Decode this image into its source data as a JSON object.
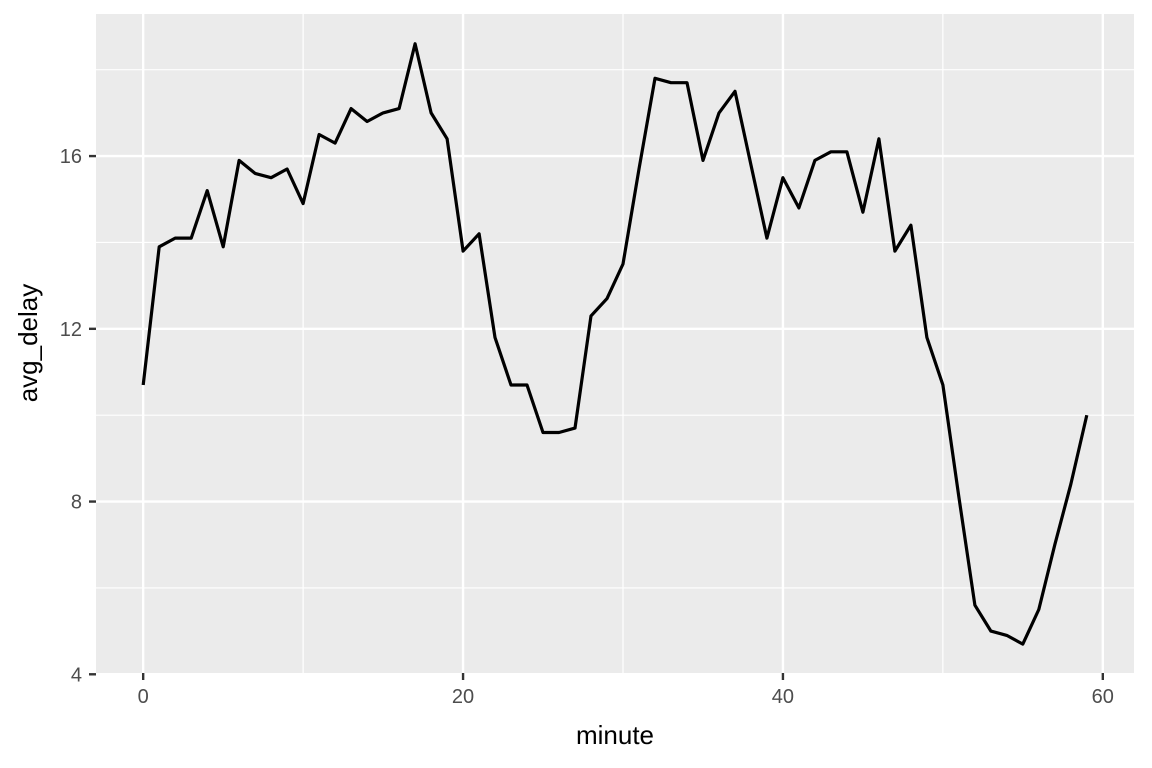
{
  "chart_data": {
    "type": "line",
    "title": "",
    "xlabel": "minute",
    "ylabel": "avg_delay",
    "x": [
      0,
      1,
      2,
      3,
      4,
      5,
      6,
      7,
      8,
      9,
      10,
      11,
      12,
      13,
      14,
      15,
      16,
      17,
      18,
      19,
      20,
      21,
      22,
      23,
      24,
      25,
      26,
      27,
      28,
      29,
      30,
      31,
      32,
      33,
      34,
      35,
      36,
      37,
      38,
      39,
      40,
      41,
      42,
      43,
      44,
      45,
      46,
      47,
      48,
      49,
      50,
      51,
      52,
      53,
      54,
      55,
      56,
      57,
      58,
      59
    ],
    "series": [
      {
        "name": "avg_delay",
        "values": [
          10.7,
          13.9,
          14.1,
          14.1,
          15.2,
          13.9,
          15.9,
          15.6,
          15.5,
          15.7,
          14.9,
          16.5,
          16.3,
          17.1,
          16.8,
          17.0,
          17.1,
          18.6,
          17.0,
          16.4,
          13.8,
          14.2,
          11.8,
          10.7,
          10.7,
          9.6,
          9.6,
          9.7,
          12.3,
          12.7,
          13.5,
          15.7,
          17.8,
          17.7,
          17.7,
          15.9,
          17.0,
          17.5,
          15.8,
          14.1,
          15.5,
          14.8,
          15.9,
          16.1,
          16.1,
          14.7,
          16.4,
          13.8,
          14.4,
          11.8,
          10.7,
          8.1,
          5.6,
          5.0,
          4.9,
          4.7,
          5.5,
          7.0,
          8.4,
          10.0
        ]
      }
    ],
    "x_tick_labels": [
      "0",
      "20",
      "40",
      "60"
    ],
    "x_ticks": [
      0,
      20,
      40,
      60
    ],
    "x_minor_ticks": [
      10,
      30,
      50
    ],
    "y_tick_labels": [
      "4",
      "8",
      "12",
      "16"
    ],
    "y_ticks": [
      4,
      8,
      12,
      16
    ],
    "y_minor_ticks": [
      6,
      10,
      14,
      18
    ],
    "xlim": [
      -2.95,
      61.95
    ],
    "ylim": [
      4.03,
      19.29
    ],
    "grid": "major+minor",
    "legend": "none",
    "colors": {
      "panel_background": "#EBEBEB",
      "grid": "#FFFFFF",
      "line": "#000000",
      "tick_marks": "#333333",
      "tick_labels": "#4D4D4D",
      "axis_titles": "#000000",
      "outer_background": "#FFFFFF"
    }
  }
}
